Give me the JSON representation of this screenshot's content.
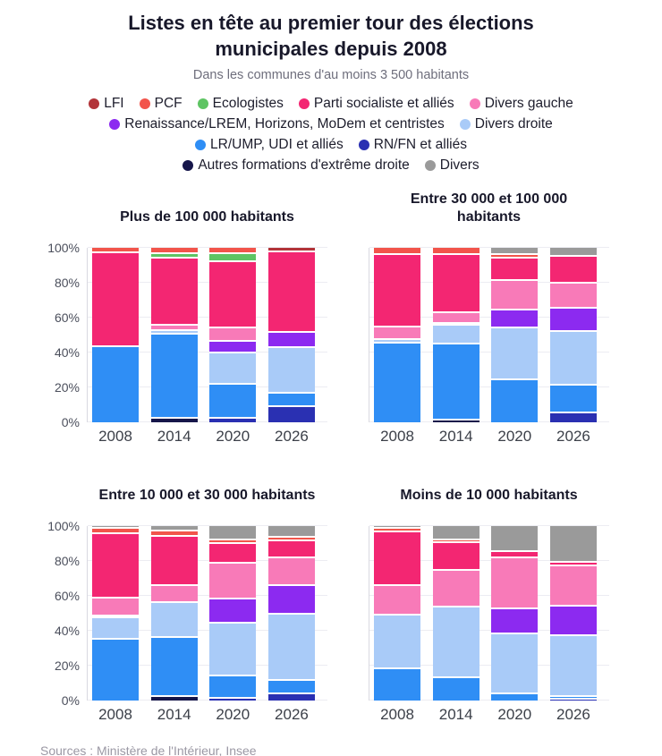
{
  "header": {
    "title": "Listes en tête au premier tour des élections municipales depuis 2008",
    "subtitle": "Dans les communes d'au moins 3 500 habitants"
  },
  "footer": {
    "source": "Sources : Ministère de l'Intérieur, Insee"
  },
  "parties": {
    "lfi": {
      "label": "LFI",
      "color": "#b23439"
    },
    "pcf": {
      "label": "PCF",
      "color": "#f2544b"
    },
    "eco": {
      "label": "Ecologistes",
      "color": "#5ec463"
    },
    "ps": {
      "label": "Parti socialiste et alliés",
      "color": "#f32672"
    },
    "dvg": {
      "label": "Divers gauche",
      "color": "#f87ab8"
    },
    "ren": {
      "label": "Renaissance/LREM, Horizons, MoDem et centristes",
      "color": "#8c2af0"
    },
    "dvd": {
      "label": "Divers droite",
      "color": "#a9cbf8"
    },
    "lr": {
      "label": "LR/UMP, UDI et alliés",
      "color": "#2f8ef5"
    },
    "rn": {
      "label": "RN/FN et alliés",
      "color": "#2a30b2"
    },
    "exd": {
      "label": "Autres formations d'extrême droite",
      "color": "#16164a"
    },
    "div": {
      "label": "Divers",
      "color": "#9a9a9a"
    }
  },
  "legend": {
    "rows": [
      [
        "lfi",
        "pcf",
        "eco",
        "ps",
        "dvg"
      ],
      [
        "ren",
        "dvd"
      ],
      [
        "lr",
        "rn"
      ],
      [
        "exd",
        "div"
      ]
    ]
  },
  "axis": {
    "y_ticks": [
      "0%",
      "20%",
      "40%",
      "60%",
      "80%",
      "100%"
    ],
    "y_tick_values": [
      0,
      20,
      40,
      60,
      80,
      100
    ]
  },
  "chart_data": [
    {
      "type": "stacked_bar_100",
      "title": "Plus de 100 000 habitants",
      "unit": "%",
      "ylim": [
        0,
        100
      ],
      "show_y_labels": true,
      "categories": [
        "2008",
        "2014",
        "2020",
        "2026"
      ],
      "bars": [
        {
          "year": "2008",
          "segments": [
            {
              "party": "lr",
              "value": 43
            },
            {
              "party": "ps",
              "value": 54
            },
            {
              "party": "pcf",
              "value": 3
            }
          ]
        },
        {
          "year": "2014",
          "segments": [
            {
              "party": "exd",
              "value": 2
            },
            {
              "party": "lr",
              "value": 48.5
            },
            {
              "party": "dvd",
              "value": 2
            },
            {
              "party": "dvg",
              "value": 3
            },
            {
              "party": "ps",
              "value": 38.5
            },
            {
              "party": "eco",
              "value": 2.5
            },
            {
              "party": "pcf",
              "value": 3.5
            }
          ]
        },
        {
          "year": "2020",
          "segments": [
            {
              "party": "rn",
              "value": 2
            },
            {
              "party": "lr",
              "value": 19.5
            },
            {
              "party": "dvd",
              "value": 18
            },
            {
              "party": "ren",
              "value": 7
            },
            {
              "party": "dvg",
              "value": 7.5
            },
            {
              "party": "ps",
              "value": 38
            },
            {
              "party": "eco",
              "value": 4.5
            },
            {
              "party": "pcf",
              "value": 3.5
            }
          ]
        },
        {
          "year": "2026",
          "segments": [
            {
              "party": "rn",
              "value": 9
            },
            {
              "party": "lr",
              "value": 7.5
            },
            {
              "party": "dvd",
              "value": 26
            },
            {
              "party": "ren",
              "value": 9
            },
            {
              "party": "ps",
              "value": 46
            },
            {
              "party": "lfi",
              "value": 2.5
            }
          ]
        }
      ]
    },
    {
      "type": "stacked_bar_100",
      "title": "Entre 30 000 et 100 000\nhabitants",
      "unit": "%",
      "ylim": [
        0,
        100
      ],
      "show_y_labels": false,
      "categories": [
        "2008",
        "2014",
        "2020",
        "2026"
      ],
      "bars": [
        {
          "year": "2008",
          "segments": [
            {
              "party": "lr",
              "value": 45
            },
            {
              "party": "dvd",
              "value": 2.5
            },
            {
              "party": "dvg",
              "value": 7
            },
            {
              "party": "ps",
              "value": 41.5
            },
            {
              "party": "pcf",
              "value": 4
            }
          ]
        },
        {
          "year": "2014",
          "segments": [
            {
              "party": "exd",
              "value": 1
            },
            {
              "party": "lr",
              "value": 43.5
            },
            {
              "party": "dvd",
              "value": 11
            },
            {
              "party": "ren",
              "value": 1
            },
            {
              "party": "dvg",
              "value": 6
            },
            {
              "party": "ps",
              "value": 33.5
            },
            {
              "party": "pcf",
              "value": 4
            }
          ]
        },
        {
          "year": "2020",
          "segments": [
            {
              "party": "lr",
              "value": 24
            },
            {
              "party": "dvd",
              "value": 30
            },
            {
              "party": "ren",
              "value": 10
            },
            {
              "party": "dvg",
              "value": 17
            },
            {
              "party": "ps",
              "value": 13
            },
            {
              "party": "pcf",
              "value": 2
            },
            {
              "party": "div",
              "value": 4
            }
          ]
        },
        {
          "year": "2026",
          "segments": [
            {
              "party": "rn",
              "value": 5
            },
            {
              "party": "lr",
              "value": 16
            },
            {
              "party": "dvd",
              "value": 31
            },
            {
              "party": "ren",
              "value": 13
            },
            {
              "party": "dvg",
              "value": 14.5
            },
            {
              "party": "ps",
              "value": 15.5
            },
            {
              "party": "div",
              "value": 5
            }
          ]
        }
      ]
    },
    {
      "type": "stacked_bar_100",
      "title": "Entre 10 000 et 30 000 habitants",
      "unit": "%",
      "ylim": [
        0,
        100
      ],
      "show_y_labels": true,
      "categories": [
        "2008",
        "2014",
        "2020",
        "2026"
      ],
      "bars": [
        {
          "year": "2008",
          "segments": [
            {
              "party": "lr",
              "value": 35
            },
            {
              "party": "dvd",
              "value": 12.5
            },
            {
              "party": "ren",
              "value": 1
            },
            {
              "party": "dvg",
              "value": 10
            },
            {
              "party": "ps",
              "value": 37
            },
            {
              "party": "pcf",
              "value": 3
            },
            {
              "party": "div",
              "value": 1.5
            }
          ]
        },
        {
          "year": "2014",
          "segments": [
            {
              "party": "exd",
              "value": 2
            },
            {
              "party": "lr",
              "value": 34
            },
            {
              "party": "dvd",
              "value": 20
            },
            {
              "party": "dvg",
              "value": 10
            },
            {
              "party": "ps",
              "value": 28
            },
            {
              "party": "pcf",
              "value": 3
            },
            {
              "party": "div",
              "value": 3
            }
          ]
        },
        {
          "year": "2020",
          "segments": [
            {
              "party": "rn",
              "value": 1
            },
            {
              "party": "lr",
              "value": 13
            },
            {
              "party": "dvd",
              "value": 30
            },
            {
              "party": "ren",
              "value": 14
            },
            {
              "party": "dvg",
              "value": 20.5
            },
            {
              "party": "ps",
              "value": 11.5
            },
            {
              "party": "pcf",
              "value": 2
            },
            {
              "party": "div",
              "value": 8
            }
          ]
        },
        {
          "year": "2026",
          "segments": [
            {
              "party": "rn",
              "value": 3.5
            },
            {
              "party": "lr",
              "value": 8
            },
            {
              "party": "dvd",
              "value": 38
            },
            {
              "party": "ren",
              "value": 16.5
            },
            {
              "party": "dvg",
              "value": 15.5
            },
            {
              "party": "ps",
              "value": 10
            },
            {
              "party": "pcf",
              "value": 2
            },
            {
              "party": "div",
              "value": 6.5
            }
          ]
        }
      ]
    },
    {
      "type": "stacked_bar_100",
      "title": "Moins de 10 000 habitants",
      "unit": "%",
      "ylim": [
        0,
        100
      ],
      "show_y_labels": false,
      "categories": [
        "2008",
        "2014",
        "2020",
        "2026"
      ],
      "bars": [
        {
          "year": "2008",
          "segments": [
            {
              "party": "lr",
              "value": 18
            },
            {
              "party": "dvd",
              "value": 31
            },
            {
              "party": "dvg",
              "value": 16.5
            },
            {
              "party": "ps",
              "value": 31
            },
            {
              "party": "pcf",
              "value": 2
            },
            {
              "party": "div",
              "value": 1.5
            }
          ]
        },
        {
          "year": "2014",
          "segments": [
            {
              "party": "lr",
              "value": 13
            },
            {
              "party": "dvd",
              "value": 40.5
            },
            {
              "party": "dvg",
              "value": 21
            },
            {
              "party": "ps",
              "value": 16
            },
            {
              "party": "pcf",
              "value": 1.5
            },
            {
              "party": "div",
              "value": 8
            }
          ]
        },
        {
          "year": "2020",
          "segments": [
            {
              "party": "lr",
              "value": 3.5
            },
            {
              "party": "dvd",
              "value": 34.5
            },
            {
              "party": "ren",
              "value": 14.5
            },
            {
              "party": "dvg",
              "value": 29
            },
            {
              "party": "ps",
              "value": 3.5
            },
            {
              "party": "div",
              "value": 15
            }
          ]
        },
        {
          "year": "2026",
          "segments": [
            {
              "party": "rn",
              "value": 0.5
            },
            {
              "party": "lr",
              "value": 1.5
            },
            {
              "party": "dvd",
              "value": 35
            },
            {
              "party": "ren",
              "value": 17
            },
            {
              "party": "dvg",
              "value": 23
            },
            {
              "party": "ps",
              "value": 2
            },
            {
              "party": "div",
              "value": 21
            }
          ]
        }
      ]
    }
  ]
}
